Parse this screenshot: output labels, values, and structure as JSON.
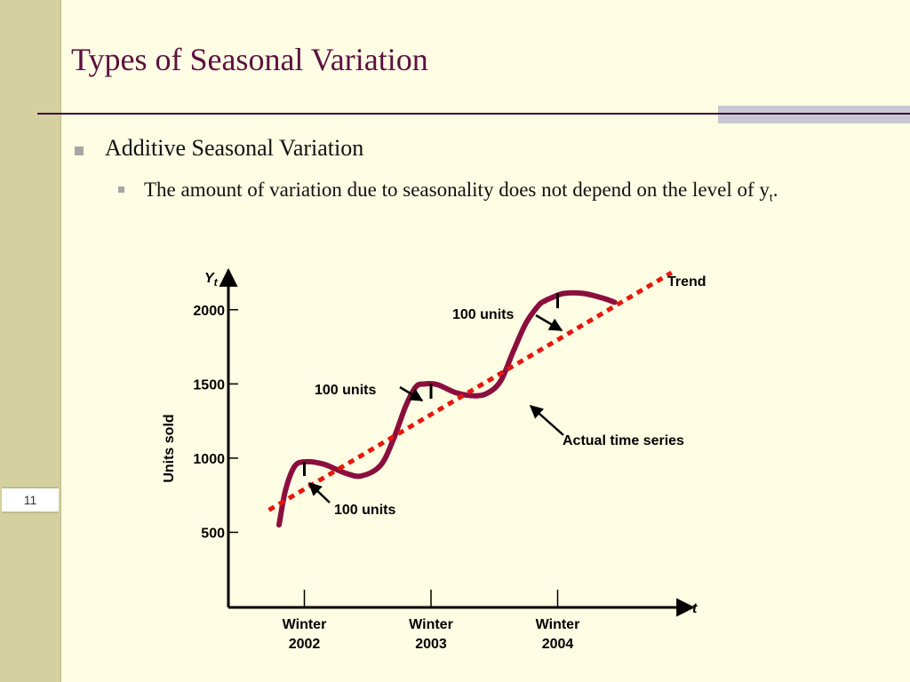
{
  "slide": {
    "title": "Types of Seasonal Variation",
    "slide_number": "11",
    "bullets": [
      {
        "text": "Additive Seasonal Variation"
      },
      {
        "text_before_sub": "The amount of variation due to seasonality does not depend on the level of y",
        "sub": "t",
        "text_after_sub": "."
      }
    ]
  },
  "colors": {
    "title": "#5b1240",
    "series_line": "#8b0f3e",
    "trend_line": "#e8160c",
    "background": "#fffde3",
    "left_band": "#d4d0a0"
  },
  "chart_data": {
    "type": "line",
    "y_axis_title": "Y",
    "y_axis_title_sub": "t",
    "x_axis_title": "t",
    "ylabel": "Units sold",
    "y_ticks": [
      "500",
      "1000",
      "1500",
      "2000"
    ],
    "y_tick_values": [
      500,
      1000,
      1500,
      2000
    ],
    "ylim": [
      0,
      2250
    ],
    "x_ticks": [
      {
        "line1": "Winter",
        "line2": "2002",
        "value": 1
      },
      {
        "line1": "Winter",
        "line2": "2003",
        "value": 2
      },
      {
        "line1": "Winter",
        "line2": "2004",
        "value": 3
      }
    ],
    "xlim": [
      0.0,
      4.0
    ],
    "series": [
      {
        "name": "Actual time series",
        "x": [
          0.8,
          0.85,
          0.92,
          1.0,
          1.15,
          1.32,
          1.45,
          1.6,
          1.7,
          1.8,
          1.88,
          1.95,
          2.05,
          2.2,
          2.35,
          2.45,
          2.55,
          2.65,
          2.75,
          2.85,
          2.9,
          2.95,
          3.05,
          3.2,
          3.35,
          3.45
        ],
        "values": [
          550,
          780,
          940,
          975,
          960,
          900,
          880,
          950,
          1120,
          1350,
          1480,
          1500,
          1495,
          1440,
          1420,
          1440,
          1520,
          1720,
          1910,
          2030,
          2060,
          2080,
          2110,
          2110,
          2080,
          2050
        ]
      },
      {
        "name": "Trend",
        "x": [
          0.72,
          3.9
        ],
        "values": [
          650,
          2250
        ]
      }
    ],
    "annotations": [
      {
        "text": "100 units",
        "x": 1.0,
        "y_low": 880,
        "y_high": 975
      },
      {
        "text": "100 units",
        "x": 2.0,
        "y_low": 1400,
        "y_high": 1500
      },
      {
        "text": "100 units",
        "x": 3.0,
        "y_low": 2010,
        "y_high": 2110
      },
      {
        "text": "Actual time series"
      },
      {
        "text": "Trend"
      }
    ]
  }
}
